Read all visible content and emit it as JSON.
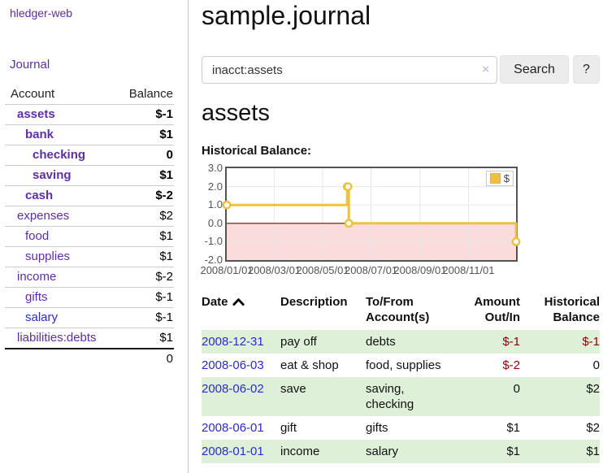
{
  "app": {
    "brand": "hledger-web"
  },
  "sidebar": {
    "journal_link": "Journal",
    "accounts_table": {
      "headers": {
        "account": "Account",
        "balance": "Balance"
      },
      "rows": [
        {
          "name": "assets",
          "indent": 1,
          "bold": true,
          "balance": "$-1",
          "balance_style": "neg"
        },
        {
          "name": "bank",
          "indent": 2,
          "bold": true,
          "balance": "$1",
          "balance_style": ""
        },
        {
          "name": "checking",
          "indent": 3,
          "bold": true,
          "balance": "0",
          "balance_style": ""
        },
        {
          "name": "saving",
          "indent": 3,
          "bold": true,
          "balance": "$1",
          "balance_style": ""
        },
        {
          "name": "cash",
          "indent": 2,
          "bold": true,
          "balance": "$-2",
          "balance_style": "neg"
        },
        {
          "name": "expenses",
          "indent": 1,
          "bold": false,
          "balance": "$2",
          "balance_style": ""
        },
        {
          "name": "food",
          "indent": 2,
          "bold": false,
          "balance": "$1",
          "balance_style": ""
        },
        {
          "name": "supplies",
          "indent": 2,
          "bold": false,
          "balance": "$1",
          "balance_style": ""
        },
        {
          "name": "income",
          "indent": 1,
          "bold": false,
          "balance": "$-2",
          "balance_style": "neg-light"
        },
        {
          "name": "gifts",
          "indent": 2,
          "bold": false,
          "balance": "$-1",
          "balance_style": "neg-light"
        },
        {
          "name": "salary",
          "indent": 2,
          "bold": false,
          "balance": "$-1",
          "balance_style": "neg-light",
          "link_color": "blue"
        },
        {
          "name": "liabilities:debts",
          "indent": 1,
          "bold": false,
          "balance": "$1",
          "balance_style": ""
        }
      ],
      "total": "0"
    }
  },
  "main": {
    "title": "sample.journal",
    "search": {
      "value": "inacct:assets",
      "clear_icon": "×",
      "button_label": "Search",
      "help_label": "?"
    },
    "account_heading": "assets",
    "chart_label": "Historical Balance:",
    "register": {
      "headers": {
        "date": "Date",
        "description": "Description",
        "accounts": "To/From Account(s)",
        "amount": "Amount Out/In",
        "balance": "Historical Balance"
      },
      "rows": [
        {
          "date": "2008-12-31",
          "description": "pay off",
          "accounts": "debts",
          "amount": "$-1",
          "amount_neg": true,
          "balance": "$-1",
          "balance_neg": true
        },
        {
          "date": "2008-06-03",
          "description": "eat & shop",
          "accounts": "food, supplies",
          "amount": "$-2",
          "amount_neg": true,
          "balance": "0",
          "balance_neg": false
        },
        {
          "date": "2008-06-02",
          "description": "save",
          "accounts": "saving, checking",
          "amount": "0",
          "amount_neg": false,
          "balance": "$2",
          "balance_neg": false
        },
        {
          "date": "2008-06-01",
          "description": "gift",
          "accounts": "gifts",
          "amount": "$1",
          "amount_neg": false,
          "balance": "$2",
          "balance_neg": false
        },
        {
          "date": "2008-01-01",
          "description": "income",
          "accounts": "salary",
          "amount": "$1",
          "amount_neg": false,
          "balance": "$1",
          "balance_neg": false
        }
      ]
    }
  },
  "colors": {
    "purple_link": "#5f2da5",
    "blue_link": "#2a2ad2",
    "negative": "#8b0000",
    "negative_light": "#c4736f",
    "row_stripe_green": "#dff0d8",
    "chart_line": "#EDC240"
  },
  "chart_data": {
    "type": "line",
    "title": "Historical Balance",
    "step": true,
    "series": [
      {
        "name": "$",
        "color": "#EDC240",
        "points": [
          {
            "date": "2008-01-01",
            "value": 1
          },
          {
            "date": "2008-06-01",
            "value": 2
          },
          {
            "date": "2008-06-02",
            "value": 2
          },
          {
            "date": "2008-06-03",
            "value": 0
          },
          {
            "date": "2008-12-31",
            "value": -1
          }
        ]
      }
    ],
    "x_domain": [
      "2008-01-01",
      "2008-12-31"
    ],
    "y_domain": [
      -2,
      3
    ],
    "y_ticks": [
      3.0,
      2.0,
      1.0,
      0.0,
      -1.0,
      -2.0
    ],
    "x_ticks": [
      "2008/01/01",
      "2008/03/01",
      "2008/05/01",
      "2008/07/01",
      "2008/09/01",
      "2008/11/01"
    ],
    "legend": {
      "label": "$",
      "position": "top-right"
    },
    "grid": true,
    "negative_region_color": "#fbdcdc",
    "zero_line_color": "#8b0000",
    "grid_color": "#e7e7e7",
    "border_color": "#545454"
  }
}
